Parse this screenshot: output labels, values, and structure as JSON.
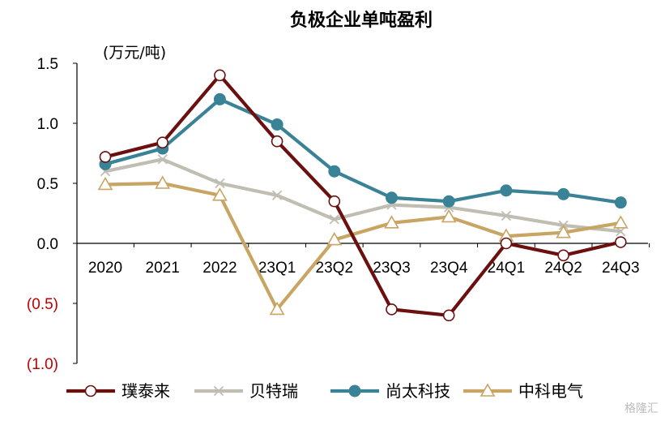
{
  "chart_data": {
    "type": "line",
    "title": "负极企业单吨盈利",
    "ylabel": "(万元/吨)",
    "xlabel": "",
    "categories": [
      "2020",
      "2021",
      "2022",
      "23Q1",
      "23Q2",
      "23Q3",
      "23Q4",
      "24Q1",
      "24Q2",
      "24Q3"
    ],
    "ylim": [
      -1.0,
      1.5
    ],
    "yticks": [
      1.5,
      1.0,
      0.5,
      0.0,
      -0.5,
      -1.0
    ],
    "ytick_labels": [
      "1.5",
      "1.0",
      "0.5",
      "0.0",
      "(0.5)",
      "(1.0)"
    ],
    "negative_tick_color": "#c00000",
    "grid": false,
    "legend_position": "bottom",
    "series": [
      {
        "name": "璞泰来",
        "color": "#6b0f0f",
        "marker": "circle-open",
        "values": [
          0.72,
          0.84,
          1.4,
          0.85,
          0.35,
          -0.55,
          -0.6,
          0.0,
          -0.1,
          0.01
        ]
      },
      {
        "name": "贝特瑞",
        "color": "#c0bdb2",
        "marker": "x",
        "values": [
          0.6,
          0.7,
          0.5,
          0.4,
          0.2,
          0.32,
          0.3,
          0.23,
          0.15,
          0.1
        ]
      },
      {
        "name": "尚太科技",
        "color": "#3a8397",
        "marker": "circle-filled",
        "values": [
          0.66,
          0.79,
          1.2,
          0.99,
          0.6,
          0.38,
          0.35,
          0.44,
          0.41,
          0.34
        ]
      },
      {
        "name": "中科电气",
        "color": "#c9a563",
        "marker": "triangle-open",
        "values": [
          0.49,
          0.5,
          0.4,
          -0.55,
          0.03,
          0.17,
          0.22,
          0.06,
          0.09,
          0.17
        ]
      }
    ]
  },
  "watermark": "格隆汇"
}
